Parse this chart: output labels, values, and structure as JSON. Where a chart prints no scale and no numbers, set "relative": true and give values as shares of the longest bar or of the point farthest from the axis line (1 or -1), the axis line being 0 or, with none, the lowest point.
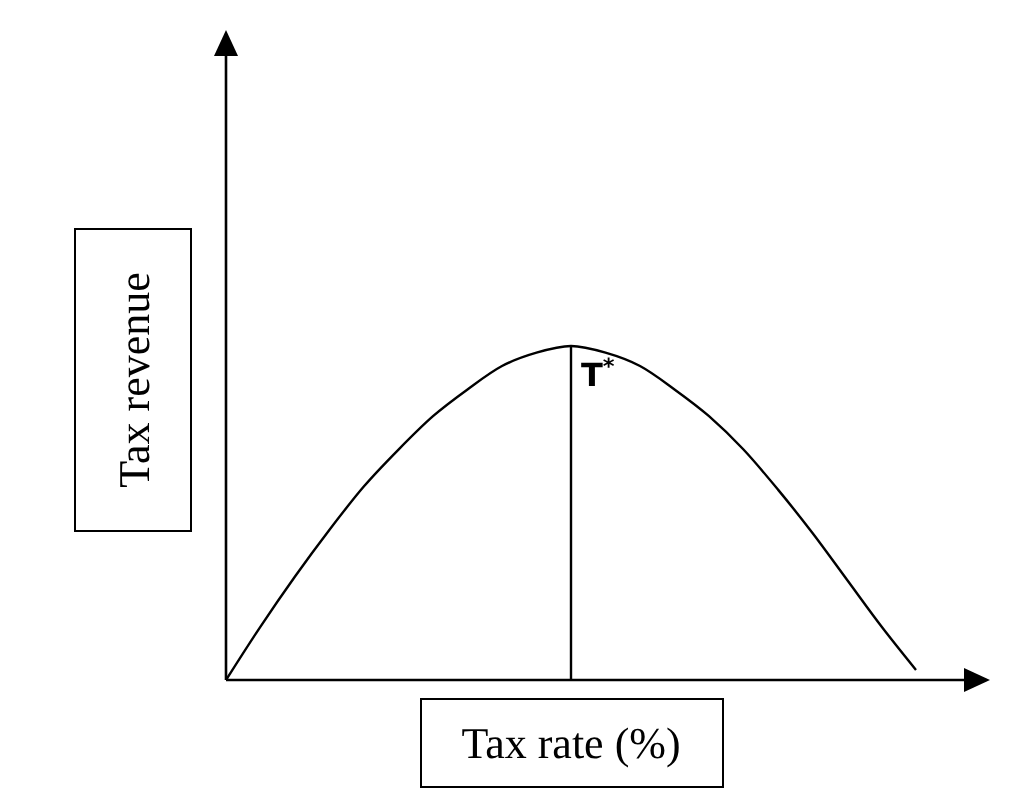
{
  "chart_data": {
    "type": "line",
    "relative": true,
    "xlabel": "Tax rate (%)",
    "ylabel": "Tax revenue",
    "categories": [
      null,
      null,
      null,
      null,
      null,
      null,
      null,
      null,
      null,
      null,
      null,
      null,
      null,
      null,
      null,
      null,
      null,
      null,
      null,
      null,
      null
    ],
    "series": [
      {
        "color": "#000000",
        "values": [
          0,
          0.16,
          0.31,
          0.45,
          0.58,
          0.69,
          0.79,
          0.87,
          0.94,
          0.98,
          1,
          0.98,
          0.94,
          0.87,
          0.79,
          0.69,
          0.57,
          0.44,
          0.3,
          0.16,
          0.03
        ]
      }
    ],
    "annotations": [
      "T$^{*}$"
    ],
    "marker": "none",
    "line_style": "solid"
  }
}
